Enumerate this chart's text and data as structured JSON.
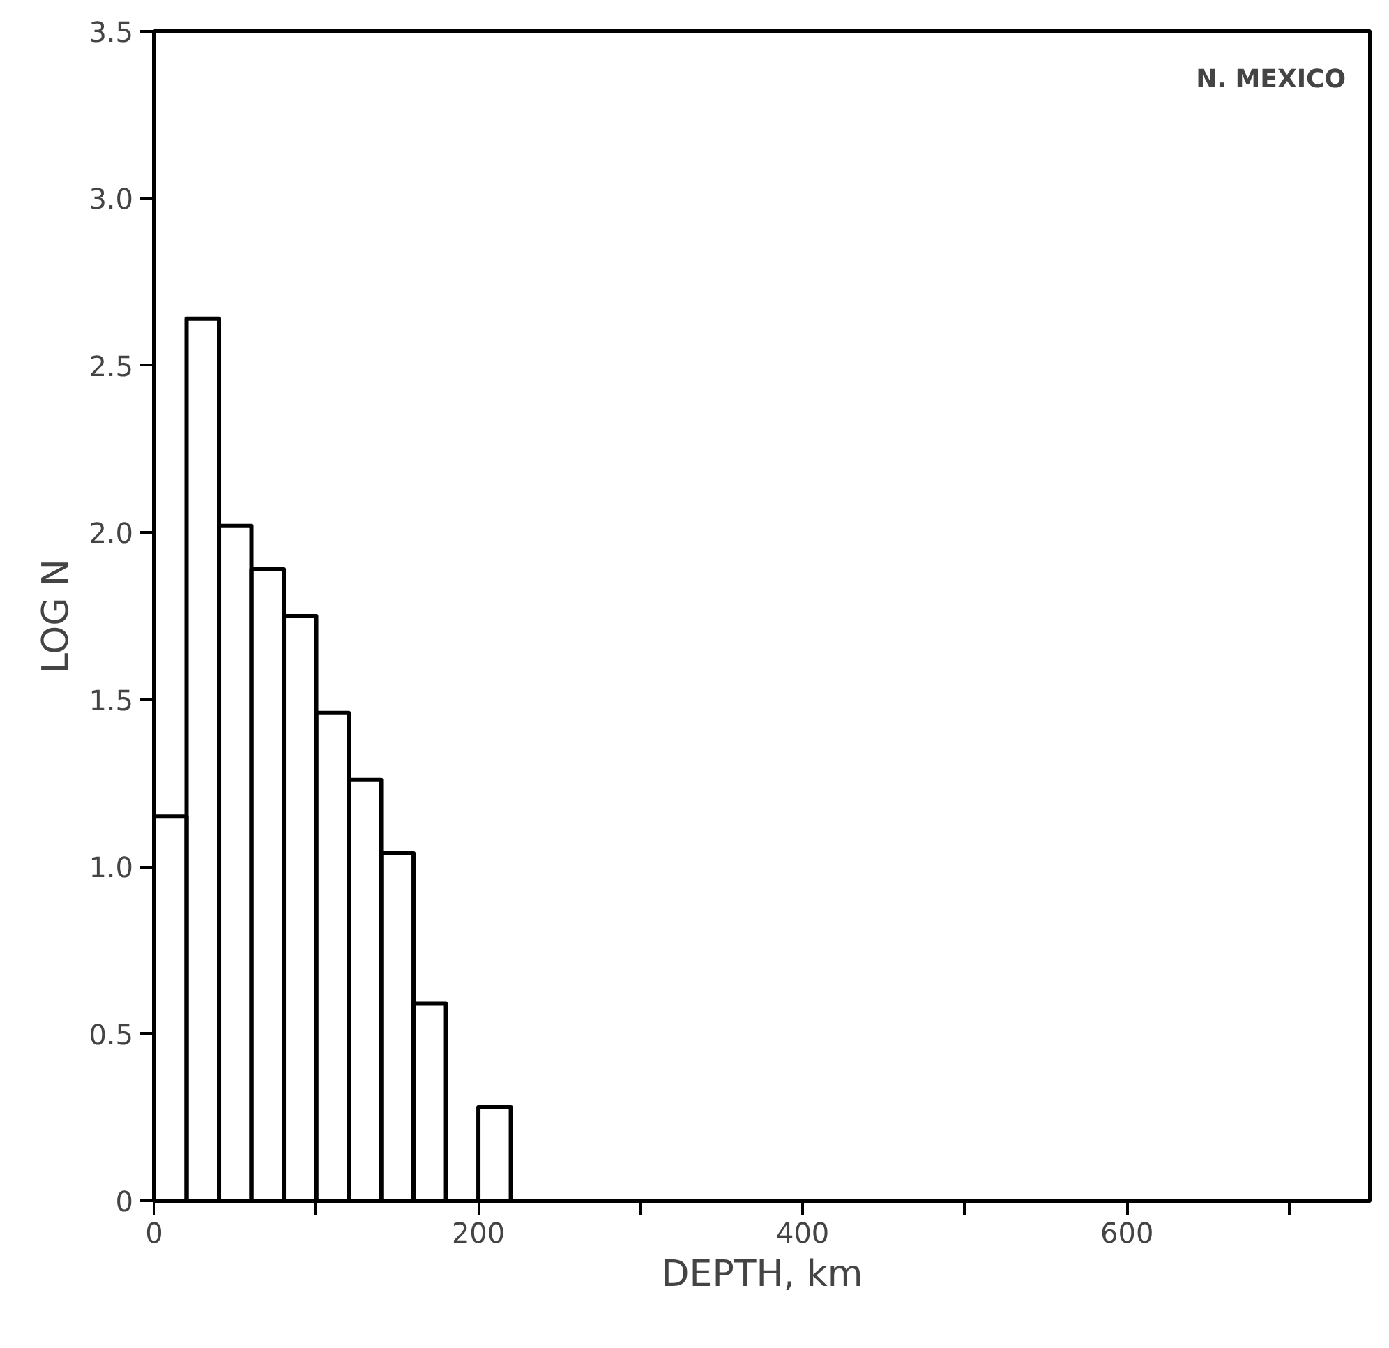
{
  "chart_data": {
    "type": "histogram",
    "xlabel": "DEPTH, km",
    "ylabel": "LOG N",
    "bins": [
      0,
      20,
      40,
      60,
      80,
      100,
      120,
      140,
      160,
      180,
      200,
      220
    ],
    "values": [
      1.15,
      2.64,
      2.02,
      1.89,
      1.75,
      1.46,
      1.26,
      1.04,
      0.59,
      0,
      0.28
    ],
    "color": "#000000",
    "xlim": [
      0,
      750
    ],
    "ylim": [
      0,
      3.5
    ],
    "xticks": [
      0,
      {
        "value": 100,
        "label": null
      },
      200,
      {
        "value": 300,
        "label": null
      },
      400,
      {
        "value": 500,
        "label": null
      },
      600,
      {
        "value": 700,
        "label": null
      }
    ],
    "yticks": [
      0,
      0.5,
      {
        "value": 1,
        "label": "1.0"
      },
      1.5,
      {
        "value": 2,
        "label": "2.0"
      },
      2.5,
      {
        "value": 3,
        "label": "3.0"
      },
      3.5
    ],
    "annotations": [
      "N. MEXICO"
    ],
    "grid": false
  }
}
